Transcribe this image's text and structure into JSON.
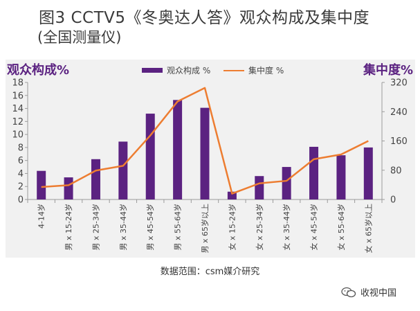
{
  "title_line1": "图3  CCTV5《冬奥达人答》观众构成及集中度",
  "title_line2": "(全国测量仪)",
  "source_note": "数据范围：csm媒介研究",
  "watermark": "收视中国",
  "colors": {
    "bar": "#5b2281",
    "line": "#ed7d31",
    "label": "#5b2281"
  },
  "chart_data": {
    "type": "bar",
    "categories": [
      "4-14岁",
      "男 x 15-24岁",
      "男 x 25-34岁",
      "男 x 35-44岁",
      "男 x 45-54岁",
      "男 x 55-64岁",
      "男 x 65岁以上",
      "女 x 15-24岁",
      "女 x 25-34岁",
      "女 x 35-44岁",
      "女 x 45-54岁",
      "女 x 55-64岁",
      "女 x 65岁以上"
    ],
    "series": [
      {
        "name": "观众构成 %",
        "type": "bar",
        "axis": "left",
        "values": [
          4.4,
          3.4,
          6.2,
          8.9,
          13.2,
          15.3,
          14.1,
          1.2,
          3.6,
          5.0,
          8.1,
          6.8,
          8.0
        ]
      },
      {
        "name": "集中度 %",
        "type": "line",
        "axis": "right",
        "values": [
          34,
          39,
          79,
          92,
          175,
          268,
          305,
          16,
          44,
          51,
          110,
          123,
          160
        ]
      }
    ],
    "ylabel": "观众构成%",
    "ylabel_right": "集中度%",
    "ylim": [
      0,
      18
    ],
    "yticks": [
      0,
      2,
      4,
      6,
      8,
      10,
      12,
      14,
      16,
      18
    ],
    "ylim_right": [
      0,
      320
    ],
    "yticks_right": [
      0,
      80,
      160,
      240,
      320
    ],
    "legend": "top-center",
    "grid": false
  }
}
